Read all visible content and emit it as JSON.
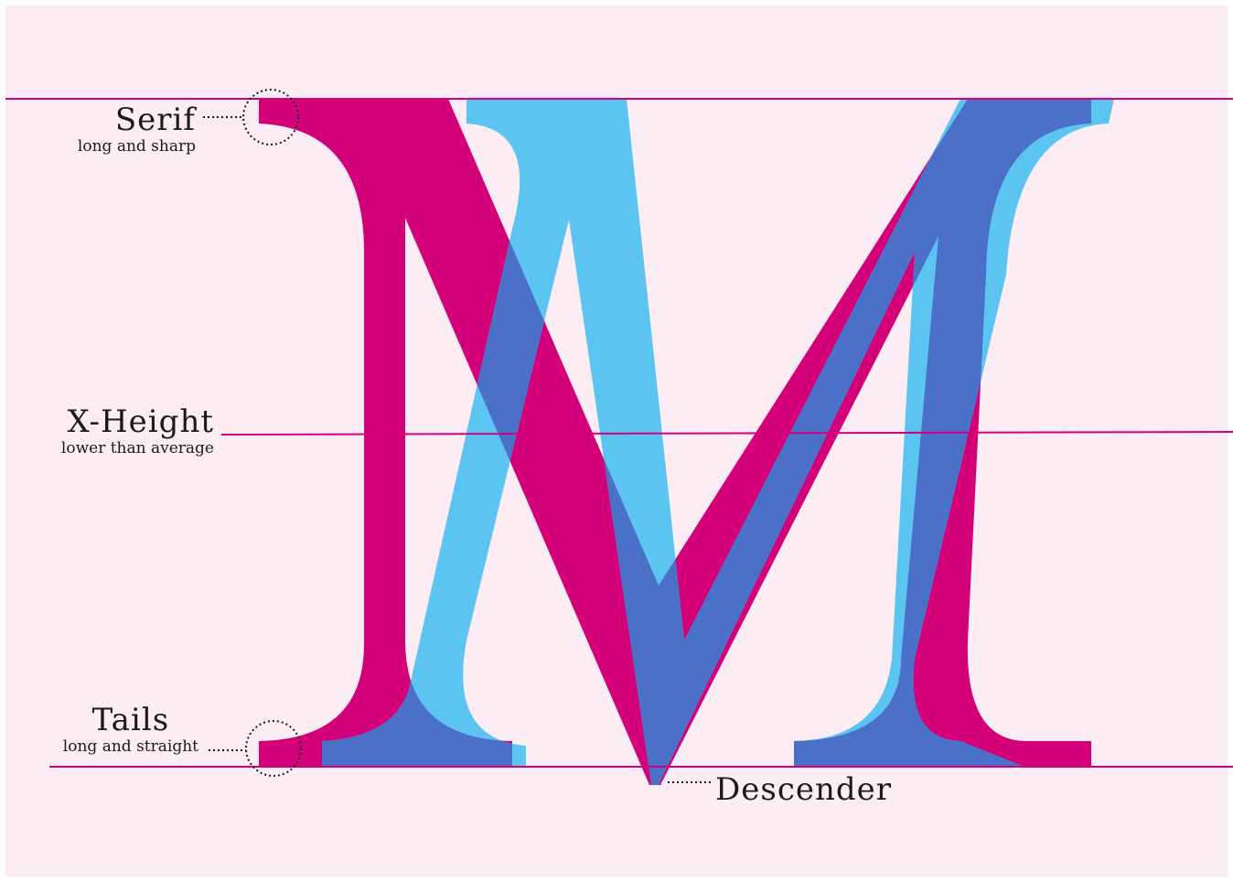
{
  "colors": {
    "background": "#fbedf3",
    "magenta": "#d3007a",
    "cyan": "#5bc4f0",
    "overlap": "#4a70c7",
    "text": "#1a1a1a"
  },
  "annotations": {
    "serif": {
      "title": "Serif",
      "note": "long and sharp"
    },
    "xheight": {
      "title": "X-Height",
      "note": "lower than average"
    },
    "tails": {
      "title": "Tails",
      "note": "long and straight"
    },
    "descender": {
      "title": "Descender"
    }
  }
}
